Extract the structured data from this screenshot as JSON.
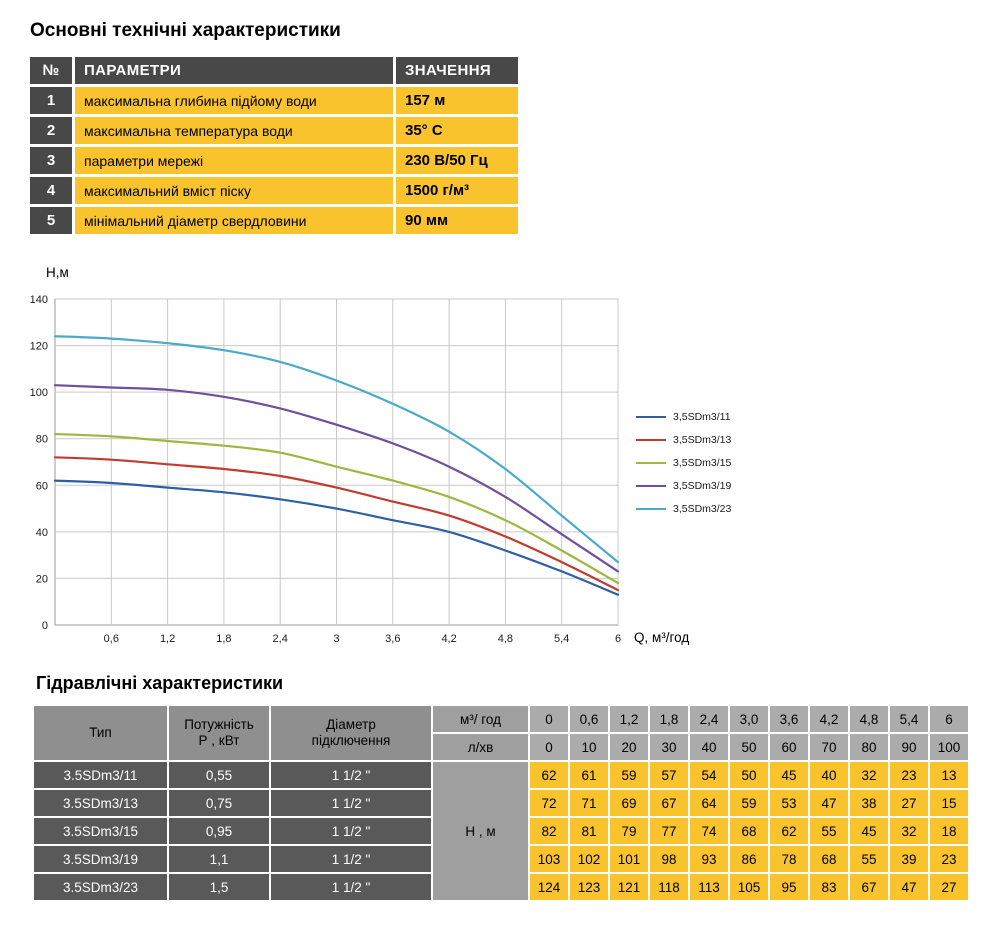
{
  "sections": {
    "specs_title": "Основні технічні характеристики",
    "hydraulics_title": "Гідравлічні характеристики"
  },
  "spec_table": {
    "headers": {
      "num": "№",
      "param": "ПАРАМЕТРИ",
      "value": "ЗНАЧЕННЯ"
    },
    "rows": [
      {
        "num": "1",
        "param": "максимальна глибина підйому води",
        "value": "157 м"
      },
      {
        "num": "2",
        "param": "максимальна температура води",
        "value": "35° С"
      },
      {
        "num": "3",
        "param": "параметри мережі",
        "value": "230 В/50 Гц"
      },
      {
        "num": "4",
        "param": "максимальний вміст піску",
        "value": "1500 г/м³"
      },
      {
        "num": "5",
        "param": "мінімальний діаметр свердловини",
        "value": "90 мм"
      }
    ]
  },
  "chart_data": {
    "type": "line",
    "title": "",
    "ylabel": "Н,м",
    "xlabel": "Q,  м³/год",
    "x": [
      0,
      0.6,
      1.2,
      1.8,
      2.4,
      3.0,
      3.6,
      4.2,
      4.8,
      5.4,
      6.0
    ],
    "x_tick_labels": [
      "0",
      "0,6",
      "1,2",
      "1,8",
      "2,4",
      "3",
      "3,6",
      "4,2",
      "4,8",
      "5,4",
      "6"
    ],
    "ylim": [
      0,
      140
    ],
    "y_ticks": [
      0,
      20,
      40,
      60,
      80,
      100,
      120,
      140
    ],
    "grid": true,
    "legend_position": "right",
    "series": [
      {
        "name": "3,5SDm3/11",
        "color": "#2e5fa4",
        "values": [
          62,
          61,
          59,
          57,
          54,
          50,
          45,
          40,
          32,
          23,
          13
        ]
      },
      {
        "name": "3,5SDm3/13",
        "color": "#c13b2f",
        "values": [
          72,
          71,
          69,
          67,
          64,
          59,
          53,
          47,
          38,
          27,
          15
        ]
      },
      {
        "name": "3,5SDm3/15",
        "color": "#9cb83d",
        "values": [
          82,
          81,
          79,
          77,
          74,
          68,
          62,
          55,
          45,
          32,
          18
        ]
      },
      {
        "name": "3,5SDm3/19",
        "color": "#6f4f9f",
        "values": [
          103,
          102,
          101,
          98,
          93,
          86,
          78,
          68,
          55,
          39,
          23
        ]
      },
      {
        "name": "3,5SDm3/23",
        "color": "#4aa9cd",
        "values": [
          124,
          123,
          121,
          118,
          113,
          105,
          95,
          83,
          67,
          47,
          27
        ]
      }
    ]
  },
  "hydraulic_table": {
    "col_headers": {
      "type": [
        "Тип"
      ],
      "power": [
        "Потужність",
        "Р , кВт"
      ],
      "diameter": [
        "Діаметр",
        "підключення"
      ]
    },
    "flow_row_m3": {
      "label": "м³/ год",
      "values": [
        "0",
        "0,6",
        "1,2",
        "1,8",
        "2,4",
        "3,0",
        "3,6",
        "4,2",
        "4,8",
        "5,4",
        "6"
      ]
    },
    "flow_row_lmin": {
      "label": "л/хв",
      "values": [
        "0",
        "10",
        "20",
        "30",
        "40",
        "50",
        "60",
        "70",
        "80",
        "90",
        "100"
      ]
    },
    "head_label": "Н , м",
    "rows": [
      {
        "type": "3.5SDm3/11",
        "power": "0,55",
        "diameter": "1 1/2 \"",
        "values": [
          62,
          61,
          59,
          57,
          54,
          50,
          45,
          40,
          32,
          23,
          13
        ]
      },
      {
        "type": "3.5SDm3/13",
        "power": "0,75",
        "diameter": "1 1/2 \"",
        "values": [
          72,
          71,
          69,
          67,
          64,
          59,
          53,
          47,
          38,
          27,
          15
        ]
      },
      {
        "type": "3.5SDm3/15",
        "power": "0,95",
        "diameter": "1 1/2 \"",
        "values": [
          82,
          81,
          79,
          77,
          74,
          68,
          62,
          55,
          45,
          32,
          18
        ]
      },
      {
        "type": "3.5SDm3/19",
        "power": "1,1",
        "diameter": "1 1/2 \"",
        "values": [
          103,
          102,
          101,
          98,
          93,
          86,
          78,
          68,
          55,
          39,
          23
        ]
      },
      {
        "type": "3.5SDm3/23",
        "power": "1,5",
        "diameter": "1 1/2 \"",
        "values": [
          124,
          123,
          121,
          118,
          113,
          105,
          95,
          83,
          67,
          47,
          27
        ]
      }
    ]
  },
  "colors": {
    "accent_yellow": "#f9c32e",
    "header_dark": "#484848",
    "row_dark": "#595959",
    "header_gray": "#8f8f8f",
    "flow_gray": "#9f9f9f",
    "tick_gray": "#ababab",
    "grid_line": "#c9c9c9"
  }
}
